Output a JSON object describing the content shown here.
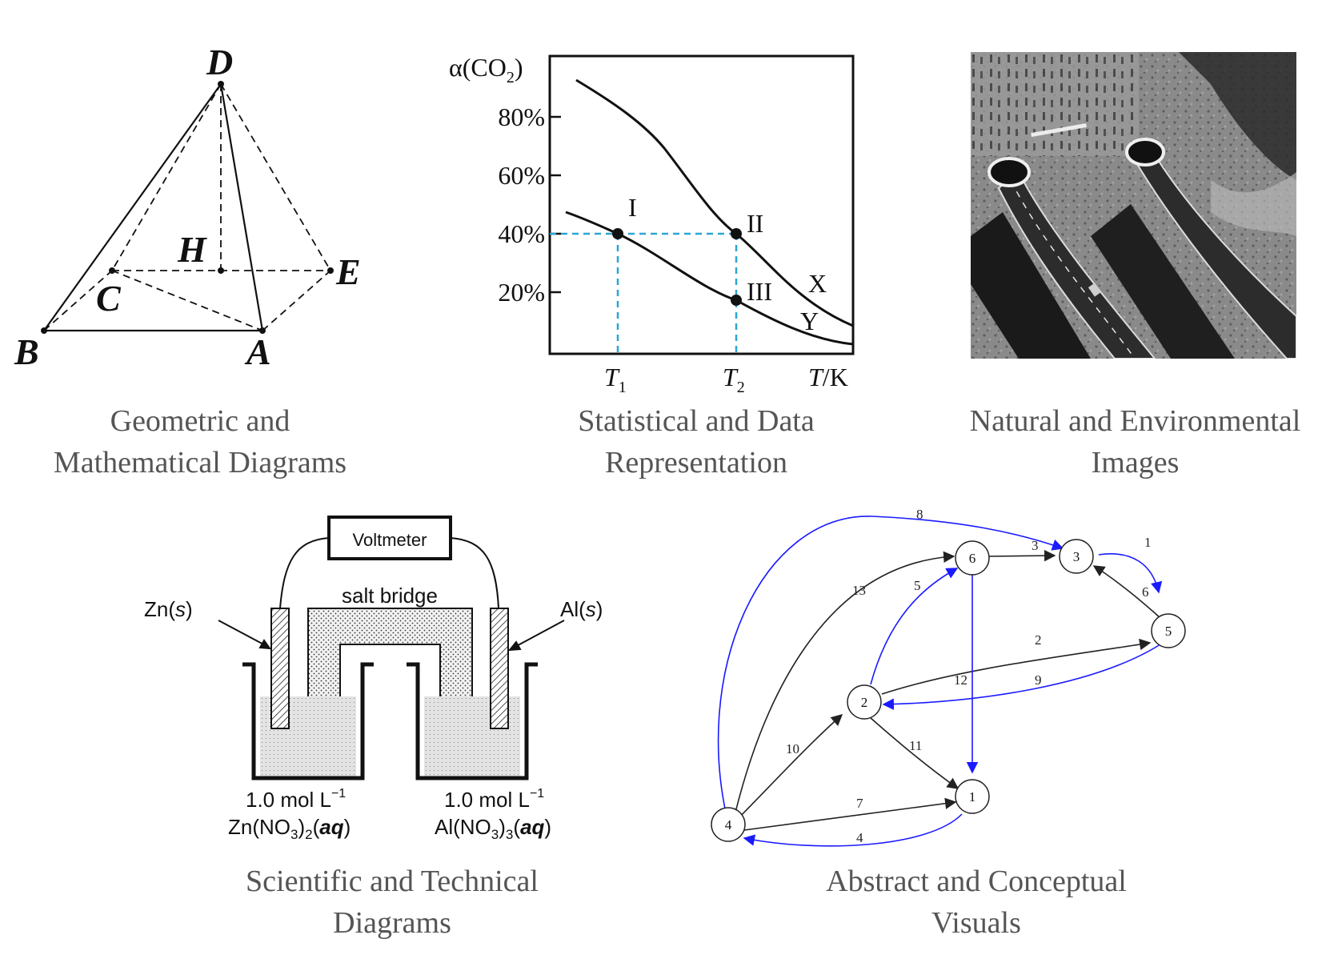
{
  "captions": {
    "geometry": [
      "Geometric and",
      "Mathematical Diagrams"
    ],
    "statistical": [
      "Statistical and Data",
      "Representation"
    ],
    "natural": [
      "Natural and Environmental",
      "Images"
    ],
    "scientific": [
      "Scientific and Technical",
      "Diagrams"
    ],
    "abstract": [
      "Abstract and Conceptual",
      "Visuals"
    ]
  },
  "geometry": {
    "vertex_labels": {
      "D": "D",
      "H": "H",
      "E": "E",
      "C": "C",
      "B": "B",
      "A": "A"
    }
  },
  "statistical": {
    "y_axis_label": "α(CO",
    "y_axis_sub": "2",
    "y_axis_close": ")",
    "y_ticks": [
      "80%",
      "60%",
      "40%",
      "20%"
    ],
    "x_ticks": [
      {
        "main": "T",
        "sub": "1"
      },
      {
        "main": "T",
        "sub": "2"
      }
    ],
    "x_axis_label": {
      "main": "T",
      "rest": "/K"
    },
    "point_labels": [
      "I",
      "II",
      "III"
    ],
    "curve_labels": [
      "X",
      "Y"
    ]
  },
  "scientific": {
    "voltmeter": "Voltmeter",
    "salt_bridge": "salt bridge",
    "left_electrode": {
      "prefix": "Zn(",
      "italic": "s",
      "suffix": ")"
    },
    "right_electrode": {
      "prefix": "Al(",
      "italic": "s",
      "suffix": ")"
    },
    "left_solution": {
      "conc": "1.0 mol L",
      "exp": "−1",
      "formula_a": "Zn(NO",
      "sub_a": "3",
      "formula_b": ")",
      "sub_b": "2",
      "formula_c": "(",
      "italic": "aq",
      "formula_d": ")"
    },
    "right_solution": {
      "conc": "1.0 mol L",
      "exp": "−1",
      "formula_a": "Al(NO",
      "sub_a": "3",
      "formula_b": ")",
      "sub_b": "3",
      "formula_c": "(",
      "italic": "aq",
      "formula_d": ")"
    }
  },
  "graph": {
    "nodes": [
      "1",
      "2",
      "3",
      "4",
      "5",
      "6"
    ],
    "edge_labels": [
      "8",
      "3",
      "1",
      "13",
      "5",
      "6",
      "2",
      "12",
      "9",
      "10",
      "11",
      "7",
      "4"
    ],
    "colors": {
      "blue": "#1a1aff",
      "black": "#222222"
    }
  }
}
